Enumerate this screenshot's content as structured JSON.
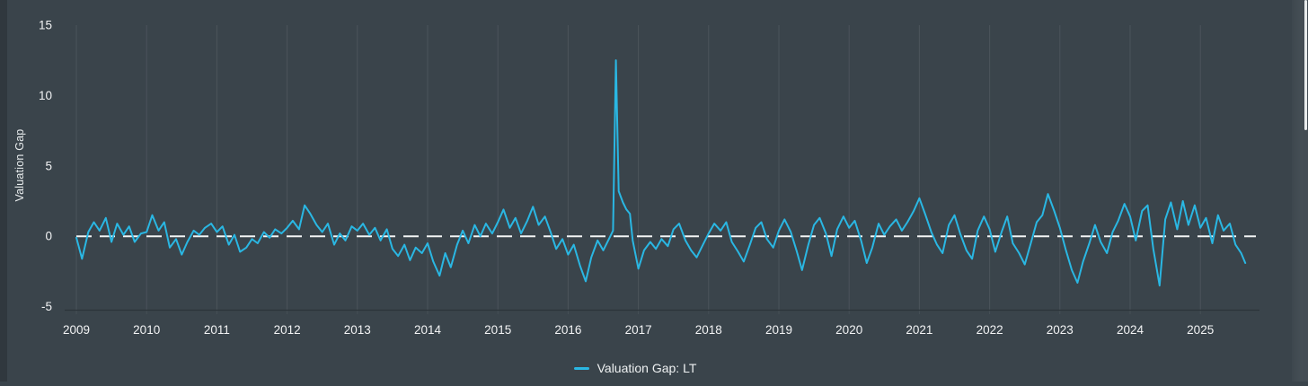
{
  "page": {
    "background": "#3a444b",
    "text_color": "#f2f3f4"
  },
  "colors": {
    "accent_line": "#2ab7e3",
    "grid": "#4b545b",
    "axis": "#2c343a",
    "tick": "#454f55",
    "zero_dash": "#f2f4f4",
    "scroll_thumb": "#e9eced"
  },
  "chart_data": {
    "type": "line",
    "title": "",
    "xlabel": "",
    "ylabel": "Valuation Gap",
    "x_ticks": [
      2009,
      2010,
      2011,
      2012,
      2013,
      2014,
      2015,
      2016,
      2017,
      2018,
      2019,
      2020,
      2021,
      2022,
      2023,
      2024,
      2025
    ],
    "y_ticks": [
      15,
      10,
      5,
      0,
      -5
    ],
    "ylim": [
      -5,
      15
    ],
    "xlim_years": [
      2009,
      2025.8
    ],
    "grid": "vertical-year-lines",
    "zero_line": {
      "value": 0,
      "style": "dashed",
      "color": "#f2f4f4"
    },
    "legend": {
      "position": "bottom-center",
      "entries": [
        {
          "label": "Valuation Gap: LT",
          "color": "#2ab7e3"
        }
      ]
    },
    "series": [
      {
        "name": "Valuation Gap: LT",
        "color": "#2ab7e3",
        "points": [
          [
            2009.0,
            -0.1
          ],
          [
            2009.08,
            -1.6
          ],
          [
            2009.17,
            0.3
          ],
          [
            2009.25,
            1.0
          ],
          [
            2009.33,
            0.4
          ],
          [
            2009.42,
            1.3
          ],
          [
            2009.5,
            -0.4
          ],
          [
            2009.58,
            0.9
          ],
          [
            2009.67,
            0.1
          ],
          [
            2009.75,
            0.7
          ],
          [
            2009.83,
            -0.4
          ],
          [
            2009.92,
            0.2
          ],
          [
            2010.0,
            0.3
          ],
          [
            2010.08,
            1.5
          ],
          [
            2010.17,
            0.4
          ],
          [
            2010.25,
            1.0
          ],
          [
            2010.33,
            -0.8
          ],
          [
            2010.42,
            -0.2
          ],
          [
            2010.5,
            -1.3
          ],
          [
            2010.58,
            -0.4
          ],
          [
            2010.67,
            0.4
          ],
          [
            2010.75,
            0.1
          ],
          [
            2010.83,
            0.6
          ],
          [
            2010.92,
            0.9
          ],
          [
            2011.0,
            0.3
          ],
          [
            2011.08,
            0.7
          ],
          [
            2011.17,
            -0.6
          ],
          [
            2011.25,
            0.1
          ],
          [
            2011.33,
            -1.1
          ],
          [
            2011.42,
            -0.8
          ],
          [
            2011.5,
            -0.2
          ],
          [
            2011.58,
            -0.5
          ],
          [
            2011.67,
            0.3
          ],
          [
            2011.75,
            -0.1
          ],
          [
            2011.83,
            0.5
          ],
          [
            2011.92,
            0.2
          ],
          [
            2012.0,
            0.6
          ],
          [
            2012.08,
            1.1
          ],
          [
            2012.17,
            0.5
          ],
          [
            2012.25,
            2.2
          ],
          [
            2012.33,
            1.6
          ],
          [
            2012.42,
            0.8
          ],
          [
            2012.5,
            0.3
          ],
          [
            2012.58,
            0.9
          ],
          [
            2012.67,
            -0.6
          ],
          [
            2012.75,
            0.2
          ],
          [
            2012.83,
            -0.3
          ],
          [
            2012.92,
            0.7
          ],
          [
            2013.0,
            0.4
          ],
          [
            2013.08,
            0.9
          ],
          [
            2013.17,
            0.1
          ],
          [
            2013.25,
            0.6
          ],
          [
            2013.33,
            -0.3
          ],
          [
            2013.42,
            0.5
          ],
          [
            2013.5,
            -0.9
          ],
          [
            2013.58,
            -1.4
          ],
          [
            2013.67,
            -0.6
          ],
          [
            2013.75,
            -1.7
          ],
          [
            2013.83,
            -0.8
          ],
          [
            2013.92,
            -1.2
          ],
          [
            2014.0,
            -0.5
          ],
          [
            2014.08,
            -1.8
          ],
          [
            2014.17,
            -2.8
          ],
          [
            2014.25,
            -1.2
          ],
          [
            2014.33,
            -2.2
          ],
          [
            2014.42,
            -0.6
          ],
          [
            2014.5,
            0.4
          ],
          [
            2014.58,
            -0.5
          ],
          [
            2014.67,
            0.8
          ],
          [
            2014.75,
            0.0
          ],
          [
            2014.83,
            0.9
          ],
          [
            2014.92,
            0.2
          ],
          [
            2015.0,
            1.0
          ],
          [
            2015.08,
            1.9
          ],
          [
            2015.17,
            0.6
          ],
          [
            2015.25,
            1.3
          ],
          [
            2015.33,
            0.2
          ],
          [
            2015.42,
            1.1
          ],
          [
            2015.5,
            2.1
          ],
          [
            2015.58,
            0.8
          ],
          [
            2015.67,
            1.4
          ],
          [
            2015.75,
            0.3
          ],
          [
            2015.83,
            -0.9
          ],
          [
            2015.92,
            -0.2
          ],
          [
            2016.0,
            -1.3
          ],
          [
            2016.08,
            -0.6
          ],
          [
            2016.17,
            -2.1
          ],
          [
            2016.25,
            -3.2
          ],
          [
            2016.33,
            -1.5
          ],
          [
            2016.42,
            -0.3
          ],
          [
            2016.5,
            -1.0
          ],
          [
            2016.58,
            -0.2
          ],
          [
            2016.64,
            0.4
          ],
          [
            2016.68,
            12.5
          ],
          [
            2016.72,
            3.2
          ],
          [
            2016.78,
            2.4
          ],
          [
            2016.83,
            1.9
          ],
          [
            2016.88,
            1.6
          ],
          [
            2016.92,
            -0.3
          ],
          [
            2017.0,
            -2.3
          ],
          [
            2017.08,
            -1.0
          ],
          [
            2017.17,
            -0.4
          ],
          [
            2017.25,
            -0.9
          ],
          [
            2017.33,
            -0.2
          ],
          [
            2017.42,
            -0.7
          ],
          [
            2017.5,
            0.5
          ],
          [
            2017.58,
            0.9
          ],
          [
            2017.67,
            -0.3
          ],
          [
            2017.75,
            -1.0
          ],
          [
            2017.83,
            -1.5
          ],
          [
            2017.92,
            -0.6
          ],
          [
            2018.0,
            0.2
          ],
          [
            2018.08,
            0.9
          ],
          [
            2018.17,
            0.4
          ],
          [
            2018.25,
            1.0
          ],
          [
            2018.33,
            -0.4
          ],
          [
            2018.42,
            -1.1
          ],
          [
            2018.5,
            -1.8
          ],
          [
            2018.58,
            -0.7
          ],
          [
            2018.67,
            0.6
          ],
          [
            2018.75,
            1.0
          ],
          [
            2018.83,
            -0.2
          ],
          [
            2018.92,
            -0.8
          ],
          [
            2019.0,
            0.4
          ],
          [
            2019.08,
            1.2
          ],
          [
            2019.17,
            0.3
          ],
          [
            2019.25,
            -1.0
          ],
          [
            2019.33,
            -2.4
          ],
          [
            2019.42,
            -0.6
          ],
          [
            2019.5,
            0.8
          ],
          [
            2019.58,
            1.3
          ],
          [
            2019.67,
            0.2
          ],
          [
            2019.75,
            -1.4
          ],
          [
            2019.83,
            0.5
          ],
          [
            2019.92,
            1.4
          ],
          [
            2020.0,
            0.6
          ],
          [
            2020.08,
            1.1
          ],
          [
            2020.17,
            -0.3
          ],
          [
            2020.25,
            -1.9
          ],
          [
            2020.33,
            -0.8
          ],
          [
            2020.42,
            0.9
          ],
          [
            2020.5,
            0.1
          ],
          [
            2020.58,
            0.7
          ],
          [
            2020.67,
            1.2
          ],
          [
            2020.75,
            0.4
          ],
          [
            2020.83,
            1.0
          ],
          [
            2020.92,
            1.8
          ],
          [
            2021.0,
            2.7
          ],
          [
            2021.08,
            1.6
          ],
          [
            2021.17,
            0.3
          ],
          [
            2021.25,
            -0.6
          ],
          [
            2021.33,
            -1.2
          ],
          [
            2021.42,
            0.8
          ],
          [
            2021.5,
            1.5
          ],
          [
            2021.58,
            0.2
          ],
          [
            2021.67,
            -1.0
          ],
          [
            2021.75,
            -1.6
          ],
          [
            2021.83,
            0.4
          ],
          [
            2021.92,
            1.4
          ],
          [
            2022.0,
            0.5
          ],
          [
            2022.08,
            -1.1
          ],
          [
            2022.17,
            0.3
          ],
          [
            2022.25,
            1.4
          ],
          [
            2022.33,
            -0.5
          ],
          [
            2022.42,
            -1.2
          ],
          [
            2022.5,
            -2.0
          ],
          [
            2022.58,
            -0.6
          ],
          [
            2022.67,
            1.0
          ],
          [
            2022.75,
            1.5
          ],
          [
            2022.83,
            3.0
          ],
          [
            2022.92,
            1.8
          ],
          [
            2023.0,
            0.6
          ],
          [
            2023.08,
            -0.9
          ],
          [
            2023.17,
            -2.4
          ],
          [
            2023.25,
            -3.3
          ],
          [
            2023.33,
            -1.8
          ],
          [
            2023.42,
            -0.5
          ],
          [
            2023.5,
            0.8
          ],
          [
            2023.58,
            -0.4
          ],
          [
            2023.67,
            -1.2
          ],
          [
            2023.75,
            0.3
          ],
          [
            2023.83,
            1.1
          ],
          [
            2023.92,
            2.3
          ],
          [
            2024.0,
            1.4
          ],
          [
            2024.08,
            -0.3
          ],
          [
            2024.17,
            1.8
          ],
          [
            2024.25,
            2.2
          ],
          [
            2024.33,
            -0.9
          ],
          [
            2024.42,
            -3.5
          ],
          [
            2024.5,
            1.2
          ],
          [
            2024.58,
            2.4
          ],
          [
            2024.67,
            0.5
          ],
          [
            2024.75,
            2.5
          ],
          [
            2024.83,
            0.8
          ],
          [
            2024.92,
            2.2
          ],
          [
            2025.0,
            0.6
          ],
          [
            2025.08,
            1.3
          ],
          [
            2025.17,
            -0.5
          ],
          [
            2025.25,
            1.5
          ],
          [
            2025.33,
            0.4
          ],
          [
            2025.42,
            0.9
          ],
          [
            2025.5,
            -0.6
          ],
          [
            2025.58,
            -1.2
          ],
          [
            2025.64,
            -1.9
          ]
        ]
      }
    ]
  },
  "scrollbar": {
    "visible": true
  }
}
